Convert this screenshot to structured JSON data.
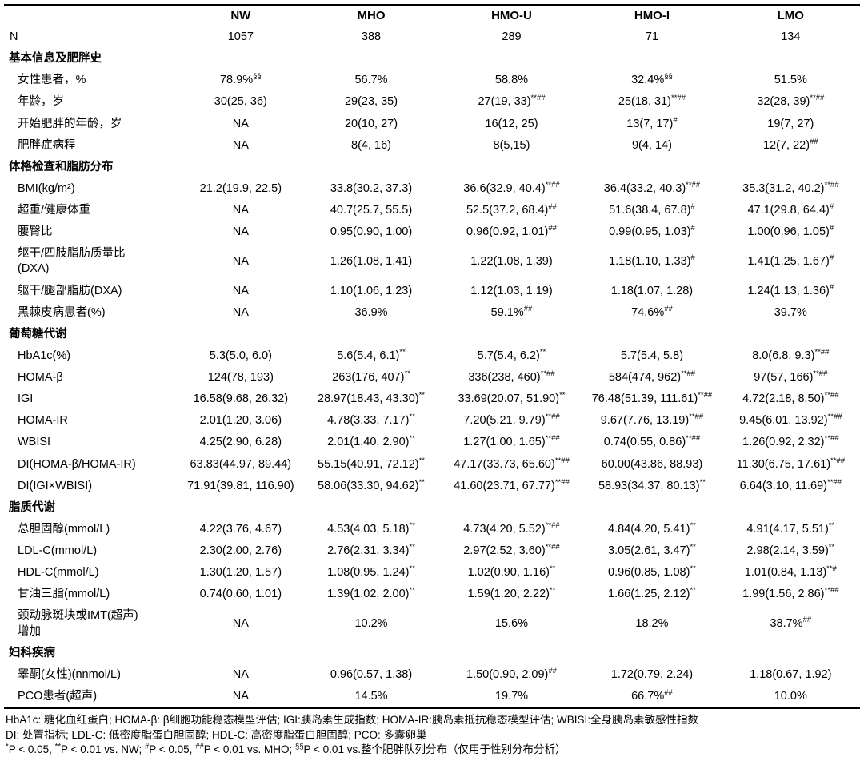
{
  "table": {
    "columns": [
      "NW",
      "MHO",
      "HMO-U",
      "HMO-I",
      "LMO"
    ],
    "rows": [
      {
        "type": "data",
        "indent": false,
        "label": "N",
        "values": [
          "1057",
          "388",
          "289",
          "71",
          "134"
        ]
      },
      {
        "type": "section",
        "label": "基本信息及肥胖史"
      },
      {
        "type": "data",
        "label": "女性患者，%",
        "values": [
          "78.9%|§§",
          "56.7%",
          "58.8%",
          "32.4%|§§",
          "51.5%"
        ]
      },
      {
        "type": "data",
        "label": "年龄，岁",
        "values": [
          "30(25, 36)",
          "29(23, 35)",
          "27(19, 33)|**##",
          "25(18, 31)|**##",
          "32(28, 39)|**##"
        ]
      },
      {
        "type": "data",
        "label": "开始肥胖的年龄，岁",
        "values": [
          "NA",
          "20(10, 27)",
          "16(12, 25)",
          "13(7, 17)|#",
          "19(7, 27)"
        ]
      },
      {
        "type": "data",
        "label": "肥胖症病程",
        "values": [
          "NA",
          "8(4, 16)",
          "8(5,15)",
          "9(4, 14)",
          "12(7, 22)|##"
        ]
      },
      {
        "type": "section",
        "label": "体格检查和脂肪分布"
      },
      {
        "type": "data",
        "label": "BMI(kg/m²)",
        "values": [
          "21.2(19.9, 22.5)",
          "33.8(30.2, 37.3)",
          "36.6(32.9, 40.4)|**##",
          "36.4(33.2, 40.3)|**##",
          "35.3(31.2, 40.2)|**##"
        ]
      },
      {
        "type": "data",
        "label": "超重/健康体重",
        "values": [
          "NA",
          "40.7(25.7, 55.5)",
          "52.5(37.2, 68.4)|##",
          "51.6(38.4, 67.8)|#",
          "47.1(29.8, 64.4)|#"
        ]
      },
      {
        "type": "data",
        "label": "腰臀比",
        "values": [
          "NA",
          "0.95(0.90, 1.00)",
          "0.96(0.92, 1.01)|##",
          "0.99(0.95, 1.03)|#",
          "1.00(0.96, 1.05)|#"
        ]
      },
      {
        "type": "data",
        "label": "躯干/四肢脂肪质量比\n(DXA)",
        "values": [
          "NA",
          "1.26(1.08, 1.41)",
          "1.22(1.08, 1.39)",
          "1.18(1.10, 1.33)|#",
          "1.41(1.25, 1.67)|#"
        ]
      },
      {
        "type": "data",
        "label": "躯干/腿部脂肪(DXA)",
        "values": [
          "NA",
          "1.10(1.06, 1.23)",
          "1.12(1.03, 1.19)",
          "1.18(1.07, 1.28)",
          "1.24(1.13, 1.36)|#"
        ]
      },
      {
        "type": "data",
        "label": "黑棘皮病患者(%)",
        "values": [
          "NA",
          "36.9%",
          "59.1%|##",
          "74.6%|##",
          "39.7%"
        ]
      },
      {
        "type": "section",
        "label": "葡萄糖代谢"
      },
      {
        "type": "data",
        "label": "HbA1c(%)",
        "values": [
          "5.3(5.0, 6.0)",
          "5.6(5.4, 6.1)|**",
          "5.7(5.4, 6.2)|**",
          "5.7(5.4, 5.8)",
          "8.0(6.8, 9.3)|**##"
        ]
      },
      {
        "type": "data",
        "label": "HOMA-β",
        "values": [
          "124(78, 193)",
          "263(176, 407)|**",
          "336(238, 460)|**##",
          "584(474, 962)|**##",
          "97(57, 166)|**##"
        ]
      },
      {
        "type": "data",
        "label": "IGI",
        "values": [
          "16.58(9.68, 26.32)",
          "28.97(18.43, 43.30)|**",
          "33.69(20.07, 51.90)|**",
          "76.48(51.39, 111.61)|**##",
          "4.72(2.18, 8.50)|**##"
        ]
      },
      {
        "type": "data",
        "label": "HOMA-IR",
        "values": [
          "2.01(1.20, 3.06)",
          "4.78(3.33, 7.17)|**",
          "7.20(5.21, 9.79)|**##",
          "9.67(7.76, 13.19)|**##",
          "9.45(6.01, 13.92)|**##"
        ]
      },
      {
        "type": "data",
        "label": "WBISI",
        "values": [
          "4.25(2.90, 6.28)",
          "2.01(1.40, 2.90)|**",
          "1.27(1.00, 1.65)|**##",
          "0.74(0.55, 0.86)|**##",
          "1.26(0.92, 2.32)|**##"
        ]
      },
      {
        "type": "data",
        "label": "DI(HOMA-β/HOMA-IR)",
        "values": [
          "63.83(44.97, 89.44)",
          "55.15(40.91, 72.12)|**",
          "47.17(33.73, 65.60)|**##",
          "60.00(43.86, 88.93)",
          "11.30(6.75, 17.61)|**##"
        ]
      },
      {
        "type": "data",
        "label": "DI(IGI×WBISI)",
        "values": [
          "71.91(39.81, 116.90)",
          "58.06(33.30, 94.62)|**",
          "41.60(23.71, 67.77)|**##",
          "58.93(34.37, 80.13)|**",
          "6.64(3.10, 11.69)|**##"
        ]
      },
      {
        "type": "section",
        "label": "脂质代谢"
      },
      {
        "type": "data",
        "label": "总胆固醇(mmol/L)",
        "values": [
          "4.22(3.76, 4.67)",
          "4.53(4.03, 5.18)|**",
          "4.73(4.20, 5.52)|**##",
          "4.84(4.20, 5.41)|**",
          "4.91(4.17, 5.51)|**"
        ]
      },
      {
        "type": "data",
        "label": "LDL-C(mmol/L)",
        "values": [
          "2.30(2.00, 2.76)",
          "2.76(2.31, 3.34)|**",
          "2.97(2.52, 3.60)|**##",
          "3.05(2.61, 3.47)|**",
          "2.98(2.14, 3.59)|**"
        ]
      },
      {
        "type": "data",
        "label": "HDL-C(mmol/L)",
        "values": [
          "1.30(1.20, 1.57)",
          "1.08(0.95, 1.24)|**",
          "1.02(0.90, 1.16)|**",
          "0.96(0.85, 1.08)|**",
          "1.01(0.84, 1.13)|**#"
        ]
      },
      {
        "type": "data",
        "label": "甘油三脂(mmol/L)",
        "values": [
          "0.74(0.60, 1.01)",
          "1.39(1.02, 2.00)|**",
          "1.59(1.20, 2.22)|**",
          "1.66(1.25, 2.12)|**",
          "1.99(1.56, 2.86)|**##"
        ]
      },
      {
        "type": "data",
        "label": "颈动脉斑块或IMT(超声)\n增加",
        "values": [
          "NA",
          "10.2%",
          "15.6%",
          "18.2%",
          "38.7%|##"
        ]
      },
      {
        "type": "section",
        "label": "妇科疾病"
      },
      {
        "type": "data",
        "label": "睾酮(女性)(nnmol/L)",
        "values": [
          "NA",
          "0.96(0.57, 1.38)",
          "1.50(0.90, 2.09)|##",
          "1.72(0.79, 2.24)",
          "1.18(0.67, 1.92)"
        ]
      },
      {
        "type": "data",
        "label": "PCO患者(超声)",
        "values": [
          "NA",
          "14.5%",
          "19.7%",
          "66.7%|##",
          "10.0%"
        ]
      }
    ]
  },
  "footnotes": {
    "line1": "HbA1c: 糖化血红蛋白; HOMA-β: β细胞功能稳态模型评估; IGI:胰岛素生成指数; HOMA-IR:胰岛素抵抗稳态模型评估; WBISI:全身胰岛素敏感性指数",
    "line2": "DI: 处置指标; LDL-C: 低密度脂蛋白胆固醇; HDL-C: 高密度脂蛋白胆固醇; PCO: 多囊卵巢",
    "line3_segments": [
      {
        "sup": "*"
      },
      {
        "text": "P < 0.05, "
      },
      {
        "sup": "**"
      },
      {
        "text": "P < 0.01 vs. NW; "
      },
      {
        "sup": "#"
      },
      {
        "text": "P < 0.05, "
      },
      {
        "sup": "##"
      },
      {
        "text": "P < 0.01 vs. MHO; "
      },
      {
        "sup": "§§"
      },
      {
        "text": "P < 0.01 vs.整个肥胖队列分布（仅用于性别分布分析）"
      }
    ]
  }
}
